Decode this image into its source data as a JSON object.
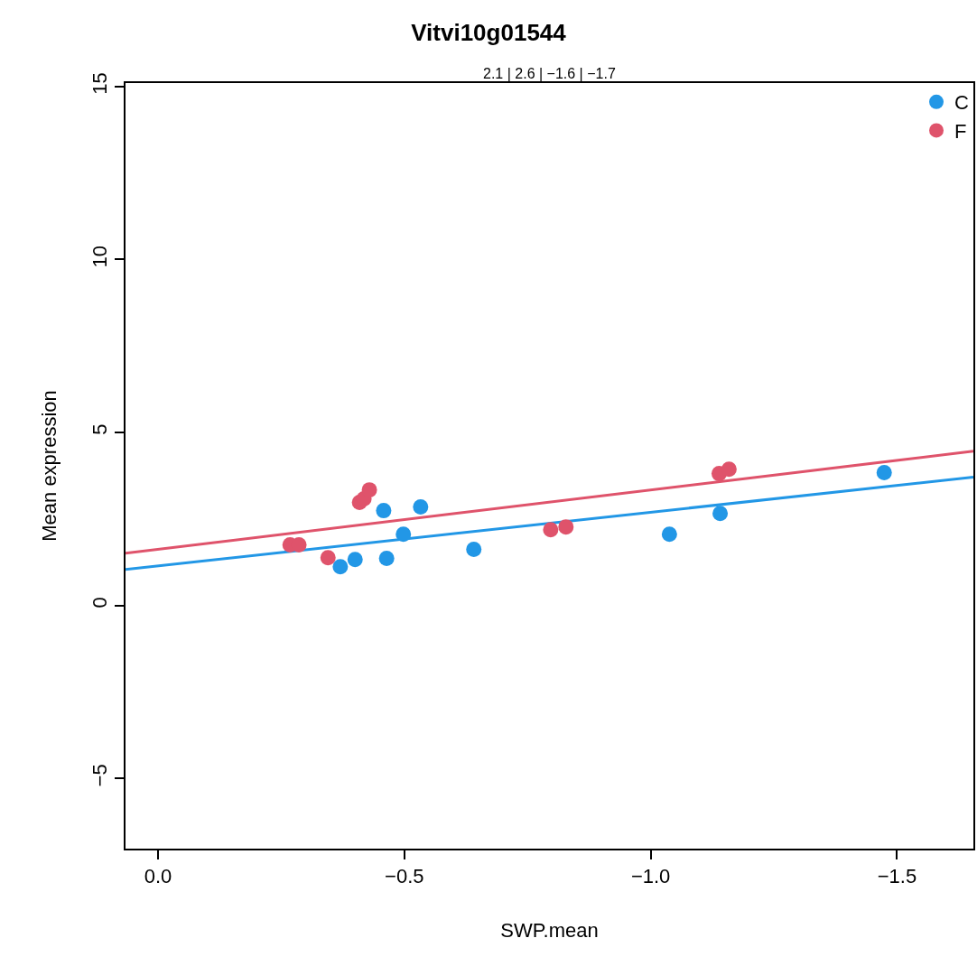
{
  "chart_data": {
    "type": "scatter",
    "title": "Vitvi10g01544",
    "subtitle": "2.1 | 2.6 | −1.6 | −1.7",
    "xlabel": "SWP.mean",
    "ylabel": "Mean expression",
    "xlim": [
      0.066,
      -1.655
    ],
    "xticks": [
      {
        "value": 0,
        "label": "0.0"
      },
      {
        "value": -0.5,
        "label": "−0.5"
      },
      {
        "value": -1.0,
        "label": "−1.0"
      },
      {
        "value": -1.5,
        "label": "−1.5"
      }
    ],
    "ylim": [
      -7.03,
      15.1
    ],
    "yticks": [
      {
        "value": -5,
        "label": "−5"
      },
      0,
      5,
      10,
      15
    ],
    "legend": "top right",
    "marker": "circle",
    "series": [
      {
        "name": "C",
        "color": "#2297e6",
        "x": [
          -0.37,
          -0.4,
          -0.458,
          -0.464,
          -0.498,
          -0.533,
          -0.641,
          -1.038,
          -1.141,
          -1.474
        ],
        "values": [
          1.12,
          1.33,
          2.74,
          1.36,
          2.06,
          2.85,
          1.62,
          2.06,
          2.66,
          3.84
        ]
      },
      {
        "name": "F",
        "color": "#df536b",
        "x": [
          -0.268,
          -0.286,
          -0.345,
          -0.409,
          -0.418,
          -0.429,
          -0.797,
          -0.828,
          -1.139,
          -1.159
        ],
        "values": [
          1.75,
          1.75,
          1.38,
          2.98,
          3.08,
          3.34,
          2.19,
          2.27,
          3.81,
          3.94
        ]
      },
      {
        "type": "line",
        "marker": "none",
        "color": "#2297e6",
        "x": [
          0.066,
          -1.655
        ],
        "values": [
          1.04,
          3.71
        ]
      },
      {
        "type": "line",
        "marker": "none",
        "color": "#df536b",
        "x": [
          0.066,
          -1.655
        ],
        "values": [
          1.51,
          4.46
        ]
      }
    ]
  }
}
